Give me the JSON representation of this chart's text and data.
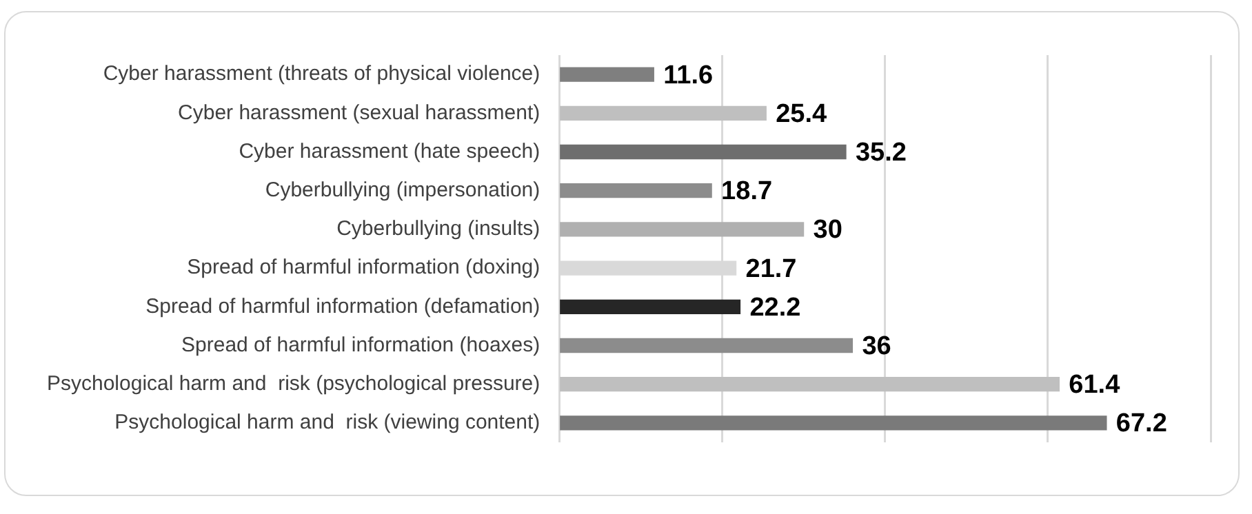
{
  "chart_data": {
    "type": "bar",
    "orientation": "horizontal",
    "categories": [
      "Cyber harassment (threats of physical violence)",
      "Cyber harassment (sexual harassment)",
      "Cyber harassment (hate speech)",
      "Cyberbullying (impersonation)",
      "Cyberbullying (insults)",
      "Spread of harmful information (doxing)",
      "Spread of harmful information (defamation)",
      "Spread of harmful information (hoaxes)",
      "Psychological harm and  risk (psychological pressure)",
      "Psychological harm and  risk (viewing content)"
    ],
    "values": [
      11.6,
      25.4,
      35.2,
      18.7,
      30,
      21.7,
      22.2,
      36,
      61.4,
      67.2
    ],
    "colors": [
      "#7f7f7f",
      "#bfbfbf",
      "#6e6e6e",
      "#8c8c8c",
      "#b0b0b0",
      "#d9d9d9",
      "#262626",
      "#8c8c8c",
      "#bfbfbf",
      "#7a7a7a"
    ],
    "xlim": [
      0,
      80
    ],
    "xticks": [
      {
        "value": 0,
        "label": null
      },
      {
        "value": 20,
        "label": null
      },
      {
        "value": 40,
        "label": null
      },
      {
        "value": 60,
        "label": null
      },
      {
        "value": 80,
        "label": null
      }
    ],
    "grid": "x",
    "data_labels": true,
    "legend": false,
    "tick_labels": "y"
  }
}
